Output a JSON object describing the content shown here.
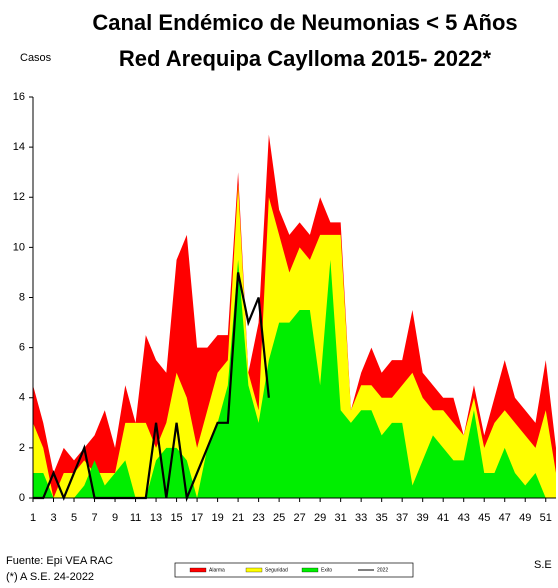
{
  "chart_data": {
    "type": "area",
    "title": "Canal Endémico de Neumonias < 5 Años",
    "subtitle": "Red Arequipa Caylloma 2015- 2022*",
    "y_label": "Casos",
    "x_label": "S.E",
    "source": "Fuente: Epi VEA RAC",
    "note": "(*) A S.E.  24-2022",
    "x": [
      1,
      2,
      3,
      4,
      5,
      6,
      7,
      8,
      9,
      10,
      11,
      12,
      13,
      14,
      15,
      16,
      17,
      18,
      19,
      20,
      21,
      22,
      23,
      24,
      25,
      26,
      27,
      28,
      29,
      30,
      31,
      32,
      33,
      34,
      35,
      36,
      37,
      38,
      39,
      40,
      41,
      42,
      43,
      44,
      45,
      46,
      47,
      48,
      49,
      50,
      51,
      52
    ],
    "xlim": [
      1,
      52
    ],
    "xticks": [
      1,
      3,
      5,
      7,
      9,
      11,
      13,
      15,
      17,
      19,
      21,
      23,
      25,
      27,
      29,
      31,
      33,
      35,
      37,
      39,
      41,
      43,
      45,
      47,
      49,
      51
    ],
    "ylim": [
      0,
      16
    ],
    "yticks": [
      0,
      2,
      4,
      6,
      8,
      10,
      12,
      14,
      16
    ],
    "grid": false,
    "series": [
      {
        "name": "Alarma",
        "color": "#ff0000",
        "kind": "area",
        "values": [
          4.5,
          3,
          1,
          2,
          1.5,
          2,
          2.5,
          3.5,
          2,
          4.5,
          3,
          6.5,
          5.5,
          5,
          9.5,
          10.5,
          6,
          6,
          6.5,
          6.5,
          13,
          5,
          7,
          14.5,
          11.5,
          10.5,
          11,
          10.5,
          12,
          11,
          11,
          3.5,
          5,
          6,
          5,
          5.5,
          5.5,
          7.5,
          5,
          4.5,
          4,
          4,
          2.5,
          4.5,
          2.5,
          4,
          5.5,
          4,
          3.5,
          3,
          5.5,
          2
        ]
      },
      {
        "name": "Seguridad",
        "color": "#ffff00",
        "kind": "area",
        "values": [
          3,
          2,
          0,
          1,
          1,
          1.5,
          1,
          1,
          1,
          3,
          3,
          3,
          2,
          3,
          5,
          4,
          2,
          3.5,
          5,
          5.5,
          12.5,
          5,
          3.5,
          12,
          10.5,
          9,
          10,
          9.5,
          10.5,
          10.5,
          10.5,
          3.5,
          4.5,
          4.5,
          4,
          4,
          4.5,
          5,
          4,
          3.5,
          3.5,
          3,
          2.5,
          4,
          2,
          3,
          3.5,
          3,
          2.5,
          2,
          3.5,
          1
        ]
      },
      {
        "name": "Exito",
        "color": "#00ee00",
        "kind": "area",
        "values": [
          1,
          1,
          0,
          0,
          0,
          0.5,
          1.5,
          0.5,
          1,
          1.5,
          0,
          0,
          1.5,
          2,
          2,
          1.5,
          0,
          2,
          3,
          4.5,
          9.5,
          4.5,
          3,
          5.5,
          7,
          7,
          7.5,
          7.5,
          4.5,
          9.5,
          3.5,
          3,
          3.5,
          3.5,
          2.5,
          3,
          3,
          0.5,
          1.5,
          2.5,
          2,
          1.5,
          1.5,
          3.5,
          1,
          1,
          2,
          1,
          0.5,
          1,
          0,
          0
        ]
      },
      {
        "name": "2022",
        "color": "#000000",
        "kind": "line",
        "values": [
          0,
          0,
          1,
          0,
          1,
          2,
          0,
          0,
          0,
          0,
          0,
          0,
          3,
          0,
          3,
          0,
          1,
          2,
          3,
          3,
          9,
          7,
          8,
          4,
          null,
          null,
          null,
          null,
          null,
          null,
          null,
          null,
          null,
          null,
          null,
          null,
          null,
          null,
          null,
          null,
          null,
          null,
          null,
          null,
          null,
          null,
          null,
          null,
          null,
          null,
          null,
          null
        ]
      }
    ]
  }
}
